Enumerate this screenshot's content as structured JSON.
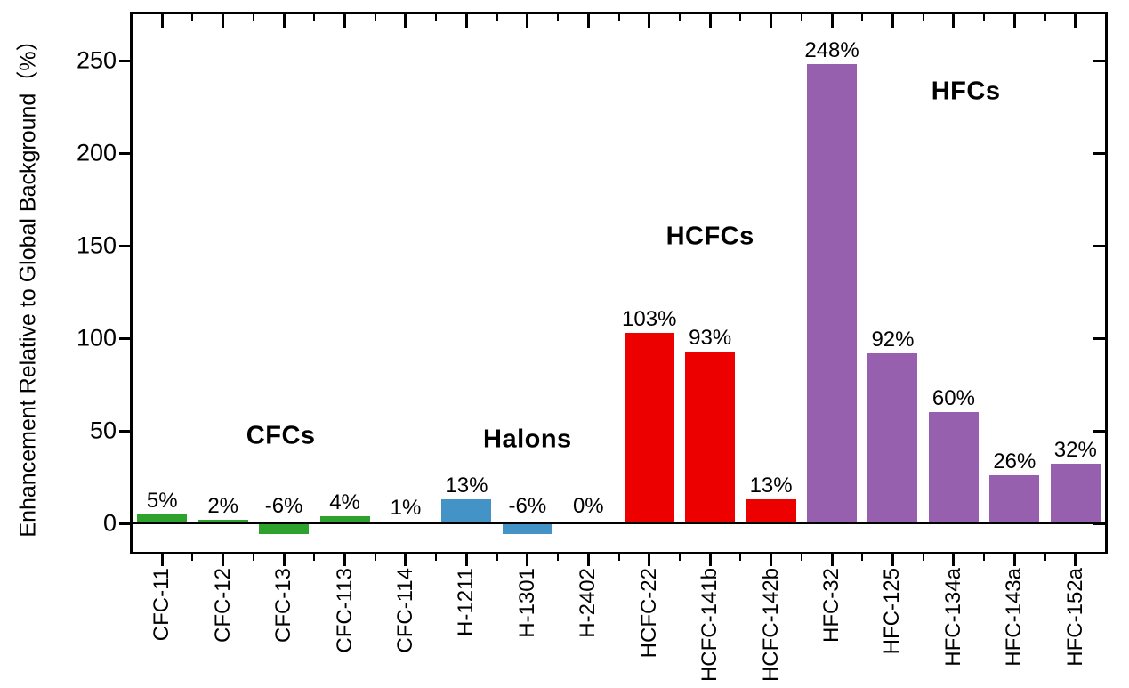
{
  "chart_data": {
    "type": "bar",
    "title": "",
    "xlabel": "",
    "ylabel": "Enhancement Relative to Global Background（%）",
    "ylim": [
      -15,
      276
    ],
    "yticks": [
      0,
      50,
      100,
      150,
      200,
      250
    ],
    "grid": false,
    "legend": false,
    "categories": [
      "CFC-11",
      "CFC-12",
      "CFC-13",
      "CFC-113",
      "CFC-114",
      "H-1211",
      "H-1301",
      "H-2402",
      "HCFC-22",
      "HCFC-141b",
      "HCFC-142b",
      "HFC-32",
      "HFC-125",
      "HFC-134a",
      "HFC-143a",
      "HFC-152a"
    ],
    "values": [
      5,
      2,
      -6,
      4,
      1,
      13,
      -6,
      0,
      103,
      93,
      13,
      248,
      92,
      60,
      26,
      32
    ],
    "bar_labels": [
      "5%",
      "2%",
      "-6%",
      "4%",
      "1%",
      "13%",
      "-6%",
      "0%",
      "103%",
      "93%",
      "13%",
      "248%",
      "92%",
      "60%",
      "26%",
      "32%"
    ],
    "groups": [
      {
        "name": "CFCs",
        "color": "#2DA32D",
        "start": 0,
        "end": 4,
        "annotation": {
          "x_index": 1.95,
          "y_value": 47
        }
      },
      {
        "name": "Halons",
        "color": "#4493C7",
        "start": 5,
        "end": 7,
        "annotation": {
          "x_index": 6.0,
          "y_value": 45
        }
      },
      {
        "name": "HCFCs",
        "color": "#EC0000",
        "start": 8,
        "end": 10,
        "annotation": {
          "x_index": 9.0,
          "y_value": 155
        }
      },
      {
        "name": "HFCs",
        "color": "#9660AF",
        "start": 11,
        "end": 15,
        "annotation": {
          "x_index": 13.2,
          "y_value": 233
        }
      }
    ],
    "colors": {
      "axis": "#000000",
      "background": "#FFFFFF",
      "text": "#000000"
    }
  }
}
